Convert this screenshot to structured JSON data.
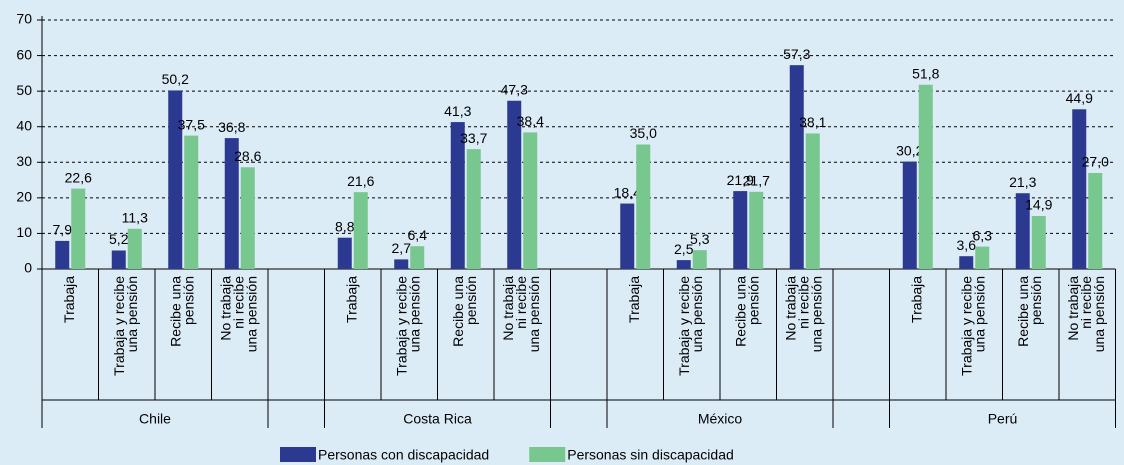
{
  "chart_data": {
    "type": "bar",
    "groups": [
      "Chile",
      "Costa Rica",
      "México",
      "Perú"
    ],
    "categories": [
      [
        "Trabaja"
      ],
      [
        "Trabaja y recibe",
        "una pensión"
      ],
      [
        "Recibe una",
        "pensión"
      ],
      [
        "No trabaja",
        "ni recibe",
        "una pensión"
      ]
    ],
    "series": [
      {
        "name": "Personas con discapacidad",
        "color": "#2b3990",
        "values": [
          [
            7.9,
            5.2,
            50.2,
            36.8
          ],
          [
            8.8,
            2.7,
            41.3,
            47.3
          ],
          [
            18.4,
            2.5,
            21.9,
            57.3
          ],
          [
            30.2,
            3.6,
            21.3,
            44.9
          ]
        ],
        "value_labels": [
          [
            "7,9",
            "5,2",
            "50,2",
            "36,8"
          ],
          [
            "8,8",
            "2,7",
            "41,3",
            "47,3"
          ],
          [
            "18,4",
            "2,5",
            "21,9",
            "57,3"
          ],
          [
            "30,2",
            "3,6",
            "21,3",
            "44,9"
          ]
        ]
      },
      {
        "name": "Personas sin discapacidad",
        "color": "#77c78e",
        "values": [
          [
            22.6,
            11.3,
            37.5,
            28.6
          ],
          [
            21.6,
            6.4,
            33.7,
            38.4
          ],
          [
            35.0,
            5.3,
            21.7,
            38.1
          ],
          [
            51.8,
            6.3,
            14.9,
            27.0
          ]
        ],
        "value_labels": [
          [
            "22,6",
            "11,3",
            "37,5",
            "28,6"
          ],
          [
            "21,6",
            "6,4",
            "33,7",
            "38,4"
          ],
          [
            "35,0",
            "5,3",
            "21,7",
            "38,1"
          ],
          [
            "51,8",
            "6,3",
            "14,9",
            "27,0"
          ]
        ]
      }
    ],
    "ylim": [
      0,
      70
    ],
    "yticks": [
      0,
      10,
      20,
      30,
      40,
      50,
      60,
      70
    ],
    "grid": true
  }
}
